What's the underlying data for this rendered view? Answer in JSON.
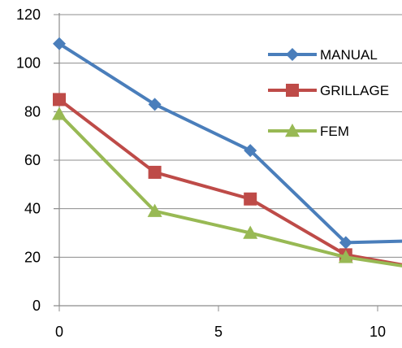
{
  "chart_data": {
    "type": "line",
    "title": "",
    "xlabel": "",
    "ylabel": "",
    "xlim": [
      0,
      11.4
    ],
    "ylim": [
      0,
      120
    ],
    "grid": "horizontal",
    "legend_position": "right",
    "x_ticks": [
      "0",
      "5",
      "10"
    ],
    "y_ticks": [
      "0",
      "20",
      "40",
      "60",
      "80",
      "100",
      "120"
    ],
    "series": [
      {
        "name": "MANUAL",
        "color": "#4a7ebb",
        "marker": "diamond",
        "x": [
          0,
          3,
          6,
          9,
          12
        ],
        "y": [
          108,
          83,
          64,
          26,
          27
        ]
      },
      {
        "name": "GRILLAGE",
        "color": "#be4b48",
        "marker": "square",
        "x": [
          0,
          3,
          6,
          9,
          12
        ],
        "y": [
          85,
          55,
          44,
          21,
          14
        ]
      },
      {
        "name": "FEM",
        "color": "#98b954",
        "marker": "triangle",
        "x": [
          0,
          3,
          6,
          9,
          12
        ],
        "y": [
          79,
          39,
          30,
          20,
          14
        ]
      }
    ]
  }
}
